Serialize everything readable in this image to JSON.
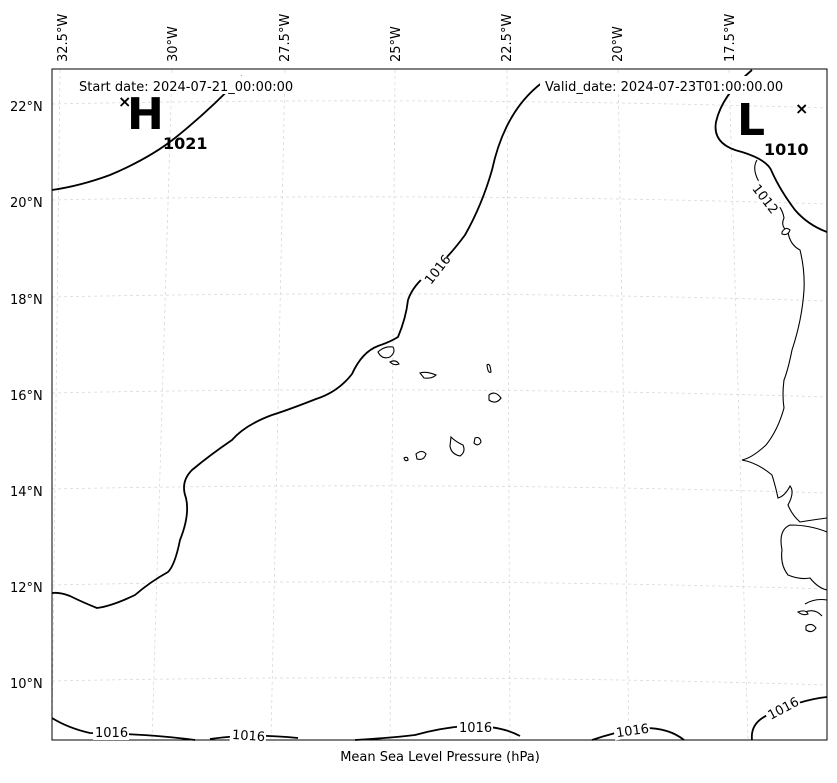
{
  "header": {
    "start_date": "Start date: 2024-07-21_00:00:00",
    "valid_date": "Valid_date: 2024-07-23T01:00:00.00"
  },
  "axes": {
    "xlabel": "Mean Sea Level Pressure (hPa)",
    "lon_ticks": [
      "32.5°W",
      "30°W",
      "27.5°W",
      "25°W",
      "22.5°W",
      "20°W",
      "17.5°W"
    ],
    "lat_ticks": [
      "22°N",
      "20°N",
      "18°N",
      "16°N",
      "14°N",
      "12°N",
      "10°N"
    ]
  },
  "pressure_centers": {
    "high": {
      "symbol": "H",
      "value": "1021",
      "marker": "×"
    },
    "low": {
      "symbol": "L",
      "value": "1010",
      "marker": "×"
    }
  },
  "isobar_labels": {
    "main": "1016",
    "coast": "1012",
    "south": [
      "1016",
      "1016",
      "1016",
      "1016",
      "1016"
    ]
  },
  "map_settings": {
    "gridlines": true,
    "line_color": "#000000",
    "grid_color": "#d9d9d9"
  }
}
